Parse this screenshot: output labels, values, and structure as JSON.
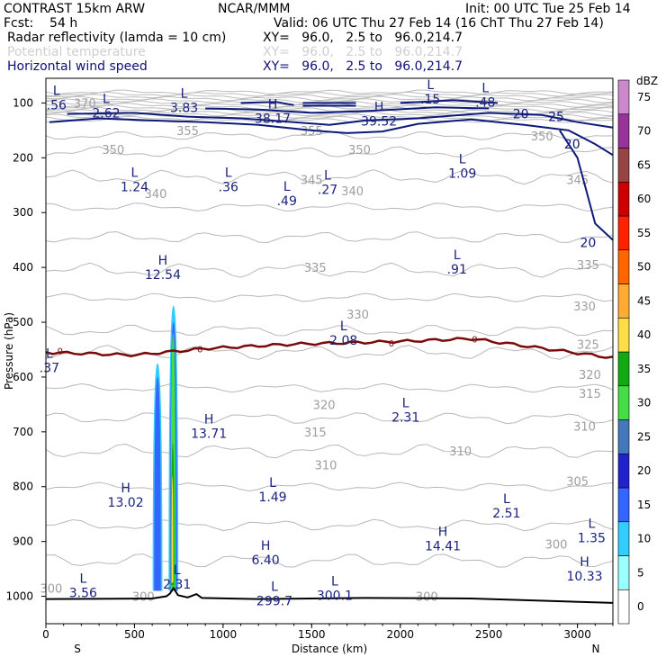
{
  "header": {
    "title": "CONTRAST 15km ARW",
    "org": "NCAR/MMM",
    "init": "Init: 00 UTC Tue 25 Feb 14",
    "fcst": "Fcst:    54 h",
    "valid": "Valid: 06 UTC Thu 27 Feb 14 (16 ChT Thu 27 Feb 14)",
    "fields": [
      {
        "name": "Radar reflectivity (lamda = 10 cm)",
        "xy": "XY=   96.0,   2.5 to   96.0,214.7",
        "color": "#000000"
      },
      {
        "name": "Potential temperature",
        "xy": "XY=   96.0,   2.5 to   96.0,214.7",
        "color": "#cfcfcf"
      },
      {
        "name": "Horizontal wind speed",
        "xy": "XY=   96.0,   2.5 to   96.0,214.7",
        "color": "#10107a"
      }
    ]
  },
  "chart_data": {
    "type": "cross-section",
    "xlabel": "Distance (km)",
    "ylabel": "Pressure (hPa)",
    "xlim": [
      0,
      3200
    ],
    "ylim": [
      1050,
      55
    ],
    "xticks": [
      "0",
      "500",
      "1000",
      "1500",
      "2000",
      "2500",
      "3000"
    ],
    "xtick_values": [
      0,
      500,
      1000,
      1500,
      2000,
      2500,
      3000
    ],
    "yticks": [
      "100",
      "200",
      "300",
      "400",
      "500",
      "600",
      "700",
      "800",
      "900",
      "1000"
    ],
    "ytick_values": [
      100,
      200,
      300,
      400,
      500,
      600,
      700,
      800,
      900,
      1000
    ],
    "endpoints": {
      "left": "S",
      "right": "N"
    },
    "colorbar": {
      "unit": "dBZ",
      "levels": [
        "0",
        "5",
        "10",
        "15",
        "20",
        "25",
        "30",
        "35",
        "40",
        "45",
        "50",
        "55",
        "60",
        "65",
        "70",
        "75"
      ],
      "colors": [
        "#ffffff",
        "#99ffff",
        "#33ccff",
        "#3366ff",
        "#2222cc",
        "#4477bb",
        "#44dd44",
        "#11aa11",
        "#ffdd44",
        "#ffaa33",
        "#ff6600",
        "#ff2200",
        "#cc0000",
        "#994444",
        "#993399",
        "#cc88cc"
      ]
    },
    "theta_contours": [
      {
        "label": "370",
        "pressure": 100,
        "x_km": 220
      },
      {
        "label": "355",
        "pressure": 150,
        "x_km": 1500
      },
      {
        "label": "355",
        "pressure": 150,
        "x_km": 800
      },
      {
        "label": "350",
        "pressure": 185,
        "x_km": 380
      },
      {
        "label": "350",
        "pressure": 185,
        "x_km": 1770
      },
      {
        "label": "350",
        "pressure": 160,
        "x_km": 2800
      },
      {
        "label": "345",
        "pressure": 240,
        "x_km": 1500
      },
      {
        "label": "345",
        "pressure": 240,
        "x_km": 3000
      },
      {
        "label": "340",
        "pressure": 265,
        "x_km": 620
      },
      {
        "label": "340",
        "pressure": 260,
        "x_km": 1730
      },
      {
        "label": "335",
        "pressure": 400,
        "x_km": 1520
      },
      {
        "label": "335",
        "pressure": 395,
        "x_km": 3060
      },
      {
        "label": "330",
        "pressure": 485,
        "x_km": 1760
      },
      {
        "label": "330",
        "pressure": 470,
        "x_km": 3040
      },
      {
        "label": "325",
        "pressure": 540,
        "x_km": 3060
      },
      {
        "label": "320",
        "pressure": 650,
        "x_km": 1570
      },
      {
        "label": "320",
        "pressure": 595,
        "x_km": 3070
      },
      {
        "label": "315",
        "pressure": 700,
        "x_km": 1520
      },
      {
        "label": "315",
        "pressure": 630,
        "x_km": 3070
      },
      {
        "label": "310",
        "pressure": 760,
        "x_km": 1580
      },
      {
        "label": "310",
        "pressure": 735,
        "x_km": 2340
      },
      {
        "label": "310",
        "pressure": 690,
        "x_km": 3040
      },
      {
        "label": "305",
        "pressure": 790,
        "x_km": 3000
      },
      {
        "label": "300",
        "pressure": 905,
        "x_km": 2880
      },
      {
        "label": "300",
        "pressure": 1000,
        "x_km": 2150
      },
      {
        "label": "300",
        "pressure": 1000,
        "x_km": 550
      },
      {
        "label": "300",
        "pressure": 985,
        "x_km": 30
      }
    ],
    "wind_contours": [
      {
        "label": "20",
        "pressure": 120,
        "x_km": 2680
      },
      {
        "label": "25",
        "pressure": 125,
        "x_km": 2880
      },
      {
        "label": "20",
        "pressure": 175,
        "x_km": 2970
      },
      {
        "label": "20",
        "pressure": 355,
        "x_km": 3060
      }
    ],
    "freezing_level": {
      "label": "0",
      "pressure_km": [
        [
          0,
          555
        ],
        [
          500,
          560
        ],
        [
          900,
          548
        ],
        [
          1400,
          540
        ],
        [
          2000,
          535
        ],
        [
          2400,
          530
        ],
        [
          3200,
          565
        ]
      ]
    },
    "extrema": [
      {
        "kind": "L",
        "value": ".56",
        "x_km": 60,
        "pressure": 90
      },
      {
        "kind": "L",
        "value": "2.62",
        "x_km": 340,
        "pressure": 105
      },
      {
        "kind": "L",
        "value": "3.83",
        "x_km": 780,
        "pressure": 95
      },
      {
        "kind": "H",
        "value": "38.17",
        "x_km": 1280,
        "pressure": 115
      },
      {
        "kind": "H",
        "value": "39.52",
        "x_km": 1880,
        "pressure": 120
      },
      {
        "kind": "L",
        "value": ".15",
        "x_km": 2170,
        "pressure": 80
      },
      {
        "kind": "L",
        "value": ".48",
        "x_km": 2480,
        "pressure": 85
      },
      {
        "kind": "L",
        "value": "1.24",
        "x_km": 500,
        "pressure": 240
      },
      {
        "kind": "L",
        "value": ".36",
        "x_km": 1030,
        "pressure": 240
      },
      {
        "kind": "L",
        "value": ".49",
        "x_km": 1360,
        "pressure": 265
      },
      {
        "kind": "L",
        "value": ".27",
        "x_km": 1590,
        "pressure": 245
      },
      {
        "kind": "L",
        "value": "1.09",
        "x_km": 2350,
        "pressure": 215
      },
      {
        "kind": "H",
        "value": "12.54",
        "x_km": 660,
        "pressure": 400
      },
      {
        "kind": "L",
        "value": ".91",
        "x_km": 2320,
        "pressure": 390
      },
      {
        "kind": "L",
        "value": "2.08",
        "x_km": 1680,
        "pressure": 520
      },
      {
        "kind": "L",
        "value": ".37",
        "x_km": 20,
        "pressure": 570
      },
      {
        "kind": "L",
        "value": "2.31",
        "x_km": 2030,
        "pressure": 660
      },
      {
        "kind": "H",
        "value": "13.71",
        "x_km": 920,
        "pressure": 690
      },
      {
        "kind": "H",
        "value": "13.02",
        "x_km": 450,
        "pressure": 815
      },
      {
        "kind": "L",
        "value": "1.49",
        "x_km": 1280,
        "pressure": 805
      },
      {
        "kind": "L",
        "value": "2.51",
        "x_km": 2600,
        "pressure": 835
      },
      {
        "kind": "L",
        "value": "1.35",
        "x_km": 3080,
        "pressure": 880
      },
      {
        "kind": "H",
        "value": "14.41",
        "x_km": 2240,
        "pressure": 895
      },
      {
        "kind": "H",
        "value": "6.40",
        "x_km": 1240,
        "pressure": 920
      },
      {
        "kind": "H",
        "value": "10.33",
        "x_km": 3040,
        "pressure": 950
      },
      {
        "kind": "L",
        "value": "3.56",
        "x_km": 210,
        "pressure": 980
      },
      {
        "kind": "L",
        "value": "2.31",
        "x_km": 740,
        "pressure": 965
      },
      {
        "kind": "L",
        "value": "299.7",
        "x_km": 1290,
        "pressure": 995
      },
      {
        "kind": "L",
        "value": "300.1",
        "x_km": 1630,
        "pressure": 985
      }
    ]
  }
}
